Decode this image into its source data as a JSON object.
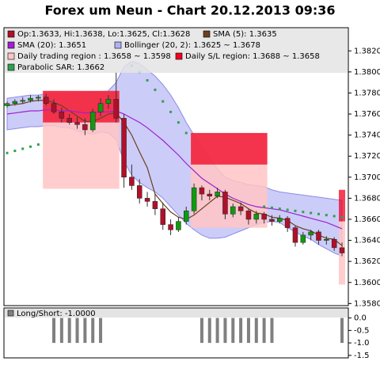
{
  "chart_data": [
    {
      "type": "candlestick",
      "title": "Forex um Neun - Chart 20.12.2013 09:36",
      "candles": {
        "name": "Op:1.3633, Hi:1.3638, Lo:1.3625, Cl:1.3628",
        "color": "#b0102a",
        "color_up": "#109a10",
        "color_down": "#b0102a",
        "open": [
          1.3768,
          1.377,
          1.3772,
          1.3773,
          1.3775,
          1.3776,
          1.377,
          1.3762,
          1.3756,
          1.3752,
          1.375,
          1.3745,
          1.3762,
          1.377,
          1.3774,
          1.3756,
          1.37,
          1.3692,
          1.368,
          1.3677,
          1.367,
          1.3655,
          1.365,
          1.3658,
          1.3668,
          1.369,
          1.3684,
          1.3682,
          1.3686,
          1.3665,
          1.3672,
          1.3668,
          1.366,
          1.3665,
          1.366,
          1.3658,
          1.3661,
          1.3652,
          1.3638,
          1.3645,
          1.3648,
          1.364,
          1.3641,
          1.3633
        ],
        "high": [
          1.3772,
          1.3774,
          1.3776,
          1.3778,
          1.3778,
          1.3779,
          1.3774,
          1.3766,
          1.376,
          1.3757,
          1.3756,
          1.3765,
          1.3775,
          1.3778,
          1.38,
          1.376,
          1.3712,
          1.3698,
          1.3686,
          1.3684,
          1.3676,
          1.366,
          1.3662,
          1.3672,
          1.3694,
          1.3692,
          1.3688,
          1.369,
          1.3688,
          1.3675,
          1.3676,
          1.367,
          1.3668,
          1.3667,
          1.3664,
          1.3664,
          1.3663,
          1.3654,
          1.3648,
          1.365,
          1.365,
          1.3644,
          1.3643,
          1.3638
        ],
        "low": [
          1.3766,
          1.3768,
          1.377,
          1.3771,
          1.3772,
          1.3768,
          1.376,
          1.3752,
          1.375,
          1.3746,
          1.374,
          1.3743,
          1.3758,
          1.3765,
          1.3752,
          1.369,
          1.3688,
          1.3675,
          1.3672,
          1.3664,
          1.365,
          1.3645,
          1.3648,
          1.3655,
          1.3665,
          1.3678,
          1.3678,
          1.368,
          1.366,
          1.3662,
          1.3664,
          1.3655,
          1.3656,
          1.3656,
          1.3654,
          1.3656,
          1.3648,
          1.3634,
          1.3636,
          1.364,
          1.3636,
          1.3636,
          1.363,
          1.3625
        ],
        "close": [
          1.377,
          1.3772,
          1.3773,
          1.3775,
          1.3776,
          1.377,
          1.3762,
          1.3756,
          1.3752,
          1.375,
          1.3745,
          1.3762,
          1.377,
          1.3774,
          1.3756,
          1.37,
          1.3692,
          1.368,
          1.3677,
          1.367,
          1.3655,
          1.365,
          1.3658,
          1.3668,
          1.369,
          1.3684,
          1.3682,
          1.3686,
          1.3665,
          1.3672,
          1.3668,
          1.366,
          1.3665,
          1.366,
          1.3658,
          1.3661,
          1.3652,
          1.3638,
          1.3645,
          1.3648,
          1.364,
          1.3641,
          1.3633,
          1.3628
        ]
      },
      "lines": [
        {
          "name": "SMA (5): 1.3635",
          "color": "#6b4020",
          "values": [
            1.3768,
            1.3769,
            1.377,
            1.3772,
            1.3773,
            1.3773,
            1.3771,
            1.3768,
            1.3763,
            1.3758,
            1.3753,
            1.3753,
            1.3756,
            1.376,
            1.3761,
            1.3752,
            1.374,
            1.3724,
            1.3709,
            1.3684,
            1.3675,
            1.3667,
            1.3662,
            1.366,
            1.3664,
            1.367,
            1.3676,
            1.3682,
            1.3681,
            1.3678,
            1.3675,
            1.367,
            1.3666,
            1.3665,
            1.3662,
            1.3661,
            1.3659,
            1.3654,
            1.3651,
            1.3649,
            1.3645,
            1.3642,
            1.3641,
            1.3635
          ]
        },
        {
          "name": "SMA (20): 1.3651",
          "color": "#a020d0",
          "values": [
            1.376,
            1.3761,
            1.3762,
            1.3763,
            1.3763,
            1.3764,
            1.3764,
            1.3763,
            1.3763,
            1.3762,
            1.3761,
            1.3761,
            1.3762,
            1.3762,
            1.3763,
            1.376,
            1.3756,
            1.3752,
            1.3747,
            1.3741,
            1.3735,
            1.3728,
            1.3721,
            1.3713,
            1.3706,
            1.3699,
            1.3694,
            1.3689,
            1.3684,
            1.368,
            1.3677,
            1.3674,
            1.3672,
            1.3671,
            1.367,
            1.3669,
            1.3667,
            1.3665,
            1.3663,
            1.3661,
            1.3659,
            1.3657,
            1.3654,
            1.3651
          ]
        }
      ],
      "band": {
        "name": "Bollinger (20, 2): 1.3625 ~ 1.3678",
        "color": "#b0b0f4",
        "stroke": "#8c8ce6",
        "upper": [
          1.3775,
          1.3776,
          1.3777,
          1.3778,
          1.3778,
          1.3779,
          1.3779,
          1.3779,
          1.3779,
          1.378,
          1.378,
          1.3781,
          1.3781,
          1.3782,
          1.379,
          1.3805,
          1.381,
          1.3808,
          1.3802,
          1.3796,
          1.3788,
          1.3778,
          1.3766,
          1.3752,
          1.374,
          1.3728,
          1.3718,
          1.3708,
          1.37,
          1.3697,
          1.3695,
          1.3693,
          1.3692,
          1.3691,
          1.3688,
          1.3686,
          1.3685,
          1.3684,
          1.3683,
          1.3682,
          1.3681,
          1.368,
          1.3679,
          1.3678
        ],
        "lower": [
          1.3745,
          1.3746,
          1.3747,
          1.3748,
          1.3748,
          1.3749,
          1.3749,
          1.3747,
          1.3747,
          1.3744,
          1.3742,
          1.3741,
          1.3743,
          1.3742,
          1.3736,
          1.3715,
          1.3702,
          1.3695,
          1.369,
          1.3686,
          1.368,
          1.3672,
          1.3664,
          1.3656,
          1.365,
          1.3645,
          1.3642,
          1.3642,
          1.3643,
          1.3646,
          1.3649,
          1.3652,
          1.3655,
          1.3657,
          1.3658,
          1.3657,
          1.3652,
          1.3648,
          1.3644,
          1.3641,
          1.3636,
          1.3632,
          1.3628,
          1.3625
        ]
      },
      "regions": [
        {
          "name": "Daily trading region : 1.3658 ~ 1.3598",
          "color": "#ffc4c4",
          "spans": [
            {
              "start": 5,
              "end": 14,
              "low": 1.3689,
              "high": 1.3782
            },
            {
              "start": 24,
              "end": 33,
              "low": 1.3652,
              "high": 1.3742
            },
            {
              "start": 43,
              "end": 43,
              "low": 1.3598,
              "high": 1.3658
            }
          ]
        },
        {
          "name": "Daily S/L region: 1.3688 ~ 1.3658",
          "color": "#f00020",
          "spans": [
            {
              "start": 5,
              "end": 14,
              "low": 1.3752,
              "high": 1.3782
            },
            {
              "start": 24,
              "end": 33,
              "low": 1.3712,
              "high": 1.3742
            },
            {
              "start": 43,
              "end": 43,
              "low": 1.3658,
              "high": 1.3688
            }
          ]
        }
      ],
      "dots": {
        "name": "Parabolic SAR: 1.3662",
        "color": "#30a050",
        "values": [
          1.3723,
          1.3725,
          1.3727,
          1.3729,
          1.3731,
          null,
          null,
          null,
          null,
          null,
          null,
          null,
          null,
          null,
          null,
          null,
          1.3806,
          1.38,
          1.3792,
          1.3783,
          1.3772,
          1.3762,
          1.3752,
          1.3742,
          null,
          null,
          null,
          null,
          null,
          null,
          null,
          null,
          null,
          1.3672,
          1.3671,
          1.367,
          1.3669,
          1.3668,
          1.3667,
          1.3666,
          1.3665,
          1.3664,
          1.3663,
          1.3662
        ]
      },
      "ylim": [
        1.3578,
        1.3842
      ],
      "yticks": [
        {
          "value": 1.358,
          "label": "1.3580"
        },
        {
          "value": 1.36,
          "label": "1.3600"
        },
        {
          "value": 1.362,
          "label": "1.3620"
        },
        {
          "value": 1.364,
          "label": "1.3640"
        },
        {
          "value": 1.366,
          "label": "1.3660"
        },
        {
          "value": 1.368,
          "label": "1.3680"
        },
        {
          "value": 1.37,
          "label": "1.3700"
        },
        {
          "value": 1.372,
          "label": "1.3720"
        },
        {
          "value": 1.374,
          "label": "1.3740"
        },
        {
          "value": 1.376,
          "label": "1.3760"
        },
        {
          "value": 1.378,
          "label": "1.3780"
        },
        {
          "value": 1.38,
          "label": "1.3800"
        },
        {
          "value": 1.382,
          "label": "1.3820"
        }
      ]
    },
    {
      "type": "bar",
      "series": [
        {
          "name": "Long/Short: -1.0000",
          "color": "#808080",
          "values": [
            0,
            0,
            0,
            0,
            0,
            0,
            -1,
            -1,
            -1,
            -1,
            -1,
            -1,
            -1,
            0,
            0,
            0,
            0,
            0,
            0,
            0,
            0,
            0,
            0,
            0,
            0,
            -1,
            -1,
            -1,
            -1,
            -1,
            -1,
            -1,
            -1,
            -1,
            -1,
            0,
            0,
            0,
            0,
            0,
            0,
            0,
            0,
            -1
          ]
        }
      ],
      "ylim": [
        -1.6,
        0.4
      ],
      "yticks": [
        {
          "value": 0,
          "label": "0.0"
        },
        {
          "value": -0.5,
          "label": "-0.5"
        },
        {
          "value": -1,
          "label": "-1.0"
        },
        {
          "value": -1.5,
          "label": "-1.5"
        }
      ]
    }
  ]
}
